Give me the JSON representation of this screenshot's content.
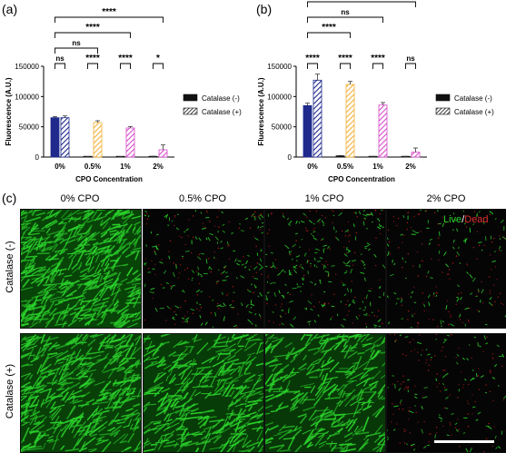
{
  "panels": {
    "a_letter": "(a)",
    "b_letter": "(b)",
    "c_letter": "(c)"
  },
  "colors": {
    "blue": "#1f2a8c",
    "orange": "#f2b13a",
    "pink": "#d64cc8",
    "neg_dark": "#111111",
    "green": "#2bd12b",
    "red": "#d02020"
  },
  "chart_data": [
    {
      "type": "bar",
      "panel": "(a)",
      "xlabel": "CPO Concentration",
      "ylabel": "Fluorescence (A.U.)",
      "categories": [
        "0%",
        "0.5%",
        "1%",
        "2%"
      ],
      "ylim": [
        0,
        150000
      ],
      "yticks": [
        "0",
        "50000",
        "100000",
        "150000"
      ],
      "series": [
        {
          "name": "Catalase (-)",
          "values": [
            65000,
            500,
            500,
            1000
          ],
          "errors": [
            2000,
            200,
            200,
            300
          ]
        },
        {
          "name": "Catalase (+)",
          "values": [
            65000,
            57000,
            48000,
            12000
          ],
          "errors": [
            3000,
            3000,
            2500,
            8000
          ]
        }
      ],
      "significance": [
        {
          "label": "****",
          "from": 0,
          "to": 3,
          "level": 4
        },
        {
          "label": "****",
          "from": 0,
          "to": 2,
          "level": 3
        },
        {
          "label": "ns",
          "from": 0,
          "to": 1,
          "level": 2
        },
        {
          "label": "ns",
          "pair": 0,
          "level": 1
        },
        {
          "label": "****",
          "pair": 1,
          "level": 1
        },
        {
          "label": "****",
          "pair": 2,
          "level": 1
        },
        {
          "label": "*",
          "pair": 3,
          "level": 1
        }
      ]
    },
    {
      "type": "bar",
      "panel": "(b)",
      "xlabel": "CPO Concentration",
      "ylabel": "Fluorescence (A.U.)",
      "categories": [
        "0%",
        "0.5%",
        "1%",
        "2%"
      ],
      "ylim": [
        0,
        150000
      ],
      "yticks": [
        "0",
        "50000",
        "100000",
        "150000"
      ],
      "series": [
        {
          "name": "Catalase (-)",
          "values": [
            85000,
            2000,
            800,
            800
          ],
          "errors": [
            4000,
            500,
            300,
            300
          ]
        },
        {
          "name": "Catalase (+)",
          "values": [
            127000,
            120000,
            86000,
            8000
          ],
          "errors": [
            10000,
            5000,
            4000,
            7000
          ]
        }
      ],
      "significance": [
        {
          "label": "****",
          "from": 0,
          "to": 3,
          "level": 5
        },
        {
          "label": "ns",
          "from": 0,
          "to": 2,
          "level": 4
        },
        {
          "label": "****",
          "from": 0,
          "to": 1,
          "level": 3
        },
        {
          "label": "****",
          "pair": 0,
          "level": 1
        },
        {
          "label": "****",
          "pair": 1,
          "level": 1
        },
        {
          "label": "****",
          "pair": 2,
          "level": 1
        },
        {
          "label": "ns",
          "pair": 3,
          "level": 1
        }
      ]
    }
  ],
  "micrographs": {
    "columns": [
      "0% CPO",
      "0.5% CPO",
      "1% CPO",
      "2% CPO"
    ],
    "rows": [
      "Catalase (-)",
      "Catalase (+)"
    ],
    "live_label": "Live",
    "slash": "/",
    "dead_label": "Dead",
    "density": [
      [
        1.0,
        0.18,
        0.22,
        0.12
      ],
      [
        0.9,
        0.75,
        0.65,
        0.1
      ]
    ]
  }
}
